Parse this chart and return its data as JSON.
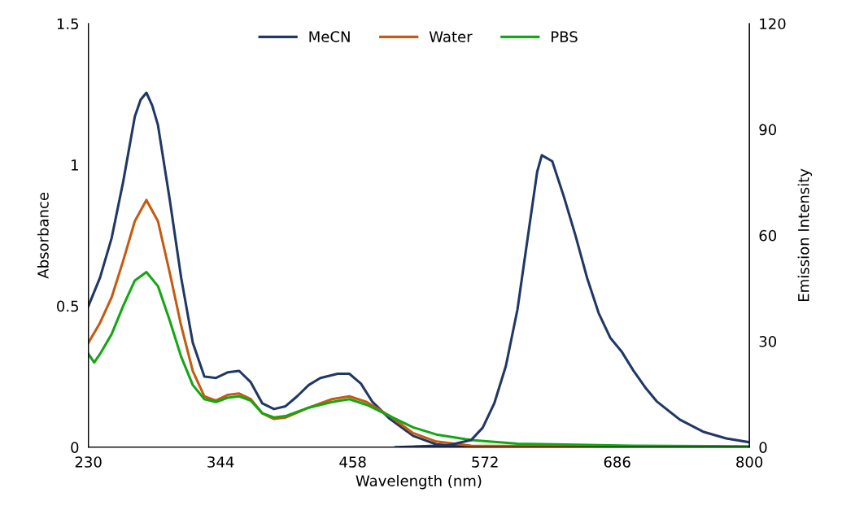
{
  "chart_data": {
    "type": "line",
    "xlabel": "Wavelength (nm)",
    "ylabel": "Absorbance",
    "y2label": "Emission Intensity",
    "xlim": [
      230,
      800
    ],
    "xticks": [
      230,
      344,
      458,
      572,
      686,
      800
    ],
    "ylim": [
      0,
      1.5
    ],
    "yticks": [
      0,
      0.5,
      1,
      1.5
    ],
    "y2lim": [
      0,
      120
    ],
    "y2ticks": [
      0,
      30,
      60,
      90,
      120
    ],
    "grid": false,
    "legend": "top",
    "marker": "none",
    "line_style": "solid",
    "series": [
      {
        "name": "MeCN",
        "color": "#203864",
        "x": [
          230,
          240,
          250,
          260,
          270,
          275,
          280,
          285,
          290,
          300,
          310,
          320,
          330,
          340,
          350,
          360,
          370,
          380,
          390,
          400,
          410,
          420,
          430,
          445,
          455,
          465,
          475,
          490,
          510,
          530,
          560
        ],
        "values": [
          0.5,
          0.6,
          0.74,
          0.94,
          1.17,
          1.23,
          1.255,
          1.21,
          1.14,
          0.88,
          0.6,
          0.37,
          0.25,
          0.245,
          0.265,
          0.27,
          0.23,
          0.155,
          0.135,
          0.145,
          0.18,
          0.22,
          0.245,
          0.26,
          0.26,
          0.225,
          0.16,
          0.1,
          0.04,
          0.01,
          0.0
        ]
      },
      {
        "name": "Water",
        "color": "#c55a11",
        "x": [
          230,
          240,
          250,
          260,
          270,
          280,
          290,
          300,
          310,
          320,
          330,
          340,
          350,
          360,
          370,
          380,
          390,
          400,
          420,
          440,
          455,
          470,
          490,
          510,
          530,
          560,
          800
        ],
        "values": [
          0.37,
          0.44,
          0.53,
          0.66,
          0.8,
          0.875,
          0.8,
          0.62,
          0.43,
          0.27,
          0.18,
          0.165,
          0.185,
          0.19,
          0.17,
          0.12,
          0.1,
          0.105,
          0.14,
          0.17,
          0.18,
          0.16,
          0.11,
          0.05,
          0.02,
          0.005,
          0.0
        ]
      },
      {
        "name": "PBS",
        "color": "#13a713",
        "x": [
          230,
          235,
          240,
          250,
          260,
          270,
          280,
          290,
          300,
          310,
          320,
          330,
          340,
          350,
          360,
          370,
          380,
          390,
          400,
          420,
          440,
          455,
          470,
          490,
          510,
          530,
          560,
          600,
          700,
          800
        ],
        "values": [
          0.33,
          0.3,
          0.33,
          0.4,
          0.5,
          0.59,
          0.62,
          0.57,
          0.45,
          0.32,
          0.22,
          0.17,
          0.16,
          0.175,
          0.18,
          0.165,
          0.12,
          0.105,
          0.11,
          0.14,
          0.16,
          0.17,
          0.15,
          0.11,
          0.07,
          0.045,
          0.025,
          0.012,
          0.005,
          0.003
        ]
      },
      {
        "color": "#203864",
        "axis": "y2",
        "x": [
          495,
          540,
          560,
          570,
          580,
          590,
          600,
          610,
          617,
          621,
          630,
          640,
          650,
          660,
          670,
          680,
          690,
          700,
          710,
          720,
          740,
          760,
          780,
          800
        ],
        "values": [
          0,
          0.5,
          2,
          5.5,
          12.4,
          23,
          39,
          62,
          78,
          82.7,
          81,
          71,
          60,
          48,
          38,
          31,
          27,
          21.7,
          17,
          13,
          7.8,
          4.4,
          2.5,
          1.4
        ]
      }
    ]
  }
}
